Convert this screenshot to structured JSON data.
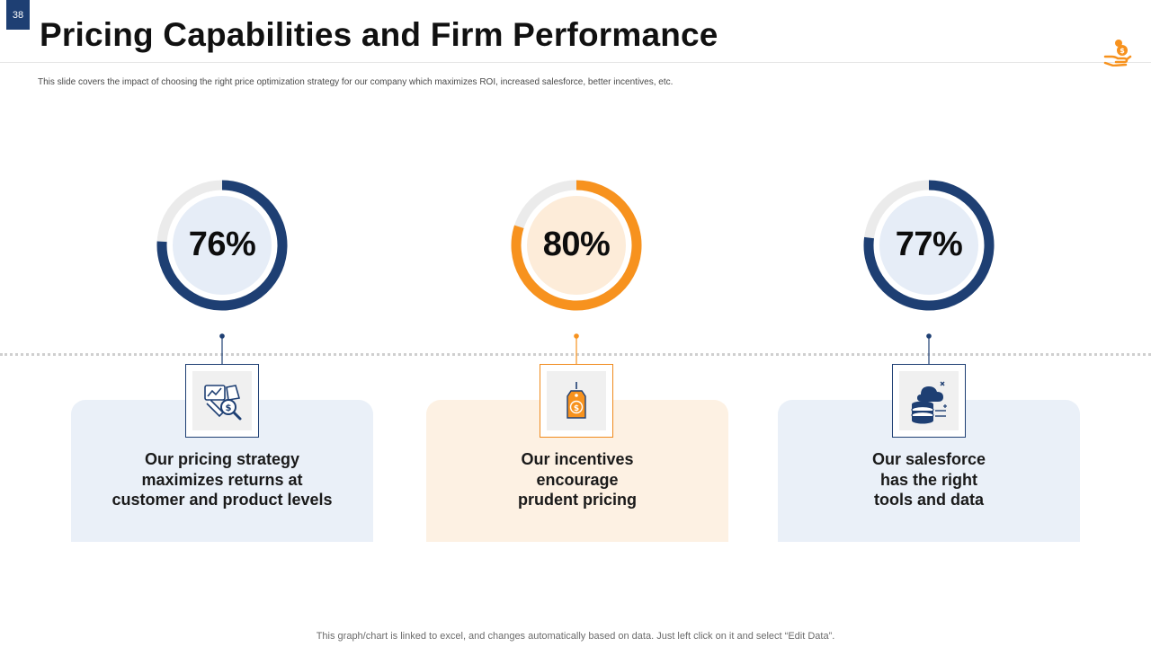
{
  "slide": {
    "number": "38",
    "title": "Pricing Capabilities and Firm Performance",
    "subtitle": "This slide covers the impact of choosing the right price optimization strategy for our company which maximizes ROI,  increased salesforce, better incentives, etc.",
    "footer": "This graph/chart is linked to excel,  and changes automatically based on data. Just left click on it and select “Edit Data”."
  },
  "colors": {
    "navy": "#1e3f73",
    "orange": "#f7921e",
    "track": "#ebebeb",
    "navy_fill": "#e6edf7",
    "orange_fill": "#fdecd9"
  },
  "chart_data": {
    "type": "pie",
    "title": "Pricing Capabilities and Firm Performance",
    "series": [
      {
        "name": "Pricing strategy",
        "value": 76,
        "label": "76%",
        "color": "navy"
      },
      {
        "name": "Incentives",
        "value": 80,
        "label": "80%",
        "color": "orange"
      },
      {
        "name": "Salesforce",
        "value": 77,
        "label": "77%",
        "color": "navy"
      }
    ],
    "max": 100
  },
  "cards": [
    {
      "lines": [
        "Our pricing strategy",
        "maximizes returns at",
        "customer and product levels"
      ],
      "icon": "pricing-analysis-icon"
    },
    {
      "lines": [
        "Our incentives",
        "encourage",
        "prudent pricing"
      ],
      "icon": "price-tag-icon"
    },
    {
      "lines": [
        "Our salesforce",
        "has the right",
        "tools and data"
      ],
      "icon": "cloud-database-icon"
    }
  ],
  "icons": {
    "corner": "hand-coin-icon"
  }
}
